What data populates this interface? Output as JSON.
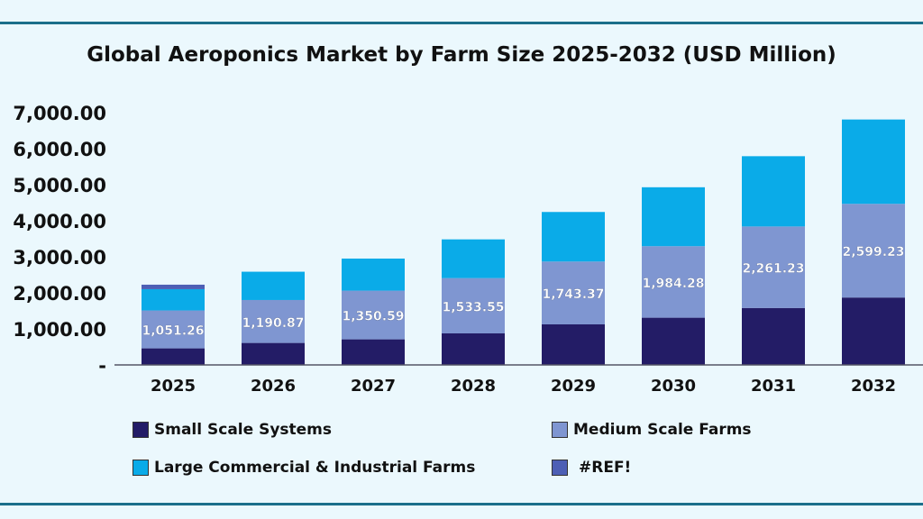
{
  "chart_data": {
    "type": "bar",
    "stacked": true,
    "title": "Global Aeroponics Market by Farm Size 2025-2032 (USD Million)",
    "categories": [
      "2025",
      "2026",
      "2027",
      "2028",
      "2029",
      "2030",
      "2031",
      "2032"
    ],
    "ylim": [
      0,
      7000
    ],
    "yticks": [
      0,
      1000,
      2000,
      3000,
      4000,
      5000,
      6000,
      7000
    ],
    "ytick_labels": [
      "-",
      "1,000.00",
      "2,000.00",
      "3,000.00",
      "4,000.00",
      "5,000.00",
      "6,000.00",
      "7,000.00"
    ],
    "grid": false,
    "legend_placement": "bottom",
    "series": [
      {
        "name": "Small Scale Systems",
        "color": "#231c66",
        "values": [
          460,
          610,
          710,
          875,
          1125,
          1310,
          1580,
          1870
        ]
      },
      {
        "name": "Medium Scale Farms",
        "color": "#7f96d1",
        "values": [
          1051.26,
          1190.87,
          1350.59,
          1533.55,
          1743.37,
          1984.28,
          2261.23,
          2599.23
        ],
        "labels": [
          "1,051.26",
          "1,190.87",
          "1,350.59",
          "1,533.55",
          "1,743.37",
          "1,984.28",
          "2,261.23",
          "2,599.23"
        ]
      },
      {
        "name": "Large Commercial & Industrial Farms",
        "color": "#0aabe8",
        "values": [
          590,
          785,
          890,
          1075,
          1375,
          1635,
          1950,
          2340
        ]
      },
      {
        "name": "#REF!",
        "color": "#4d5fb5",
        "values": [
          125,
          0,
          0,
          0,
          0,
          0,
          0,
          0
        ]
      }
    ]
  }
}
